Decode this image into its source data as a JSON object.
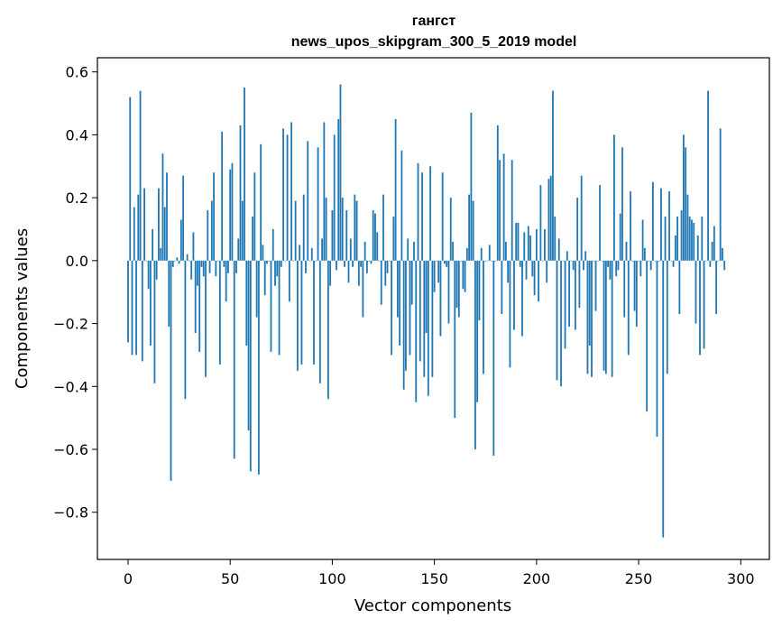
{
  "chart_data": {
    "type": "bar",
    "title": "гангст",
    "subtitle": "news_upos_skipgram_300_5_2019 model",
    "xlabel": "Vector components",
    "ylabel": "Components values",
    "xlim": [
      -15,
      314
    ],
    "ylim": [
      -0.95,
      0.645
    ],
    "xticks": [
      0,
      50,
      100,
      150,
      200,
      250,
      300
    ],
    "yticks": [
      -0.8,
      -0.6,
      -0.4,
      -0.2,
      0.0,
      0.2,
      0.4,
      0.6
    ],
    "ytick_labels": [
      "−0.8",
      "−0.6",
      "−0.4",
      "−0.2",
      "0.0",
      "0.2",
      "0.4",
      "0.6"
    ],
    "bar_color": "#1f77b4",
    "values": [
      -0.26,
      0.52,
      -0.3,
      0.17,
      -0.3,
      0.21,
      0.54,
      -0.32,
      0.23,
      0.0,
      -0.09,
      -0.27,
      0.1,
      -0.39,
      -0.06,
      0.23,
      0.04,
      0.34,
      0.17,
      0.28,
      -0.21,
      -0.7,
      -0.02,
      0.0,
      0.01,
      -0.01,
      0.13,
      0.27,
      -0.44,
      0.02,
      0.0,
      -0.06,
      0.09,
      -0.23,
      -0.08,
      -0.29,
      -0.02,
      -0.05,
      -0.37,
      0.16,
      -0.04,
      0.19,
      0.28,
      -0.05,
      0.0,
      -0.33,
      0.41,
      -0.02,
      -0.13,
      -0.04,
      0.29,
      0.31,
      -0.63,
      -0.04,
      0.07,
      0.43,
      0.19,
      0.55,
      -0.27,
      -0.54,
      -0.67,
      0.14,
      0.28,
      -0.18,
      -0.68,
      0.37,
      0.05,
      -0.11,
      -0.01,
      0.0,
      -0.29,
      0.1,
      -0.08,
      -0.05,
      -0.3,
      -0.02,
      0.42,
      0.0,
      0.4,
      -0.13,
      0.44,
      0.0,
      0.19,
      -0.35,
      0.05,
      -0.33,
      0.21,
      -0.04,
      0.38,
      0.0,
      0.04,
      -0.33,
      0.0,
      0.36,
      -0.39,
      0.07,
      0.44,
      0.2,
      -0.44,
      -0.08,
      0.16,
      0.4,
      -0.03,
      0.45,
      0.56,
      0.2,
      -0.02,
      0.16,
      -0.07,
      0.07,
      -0.02,
      0.21,
      0.19,
      -0.08,
      -0.02,
      -0.18,
      0.06,
      -0.04,
      0.0,
      -0.01,
      0.16,
      0.15,
      0.09,
      0.0,
      -0.14,
      0.21,
      -0.08,
      -0.04,
      0.0,
      -0.3,
      0.14,
      0.45,
      -0.18,
      -0.27,
      0.35,
      -0.41,
      -0.35,
      0.07,
      -0.3,
      -0.14,
      0.06,
      -0.45,
      0.31,
      -0.32,
      0.28,
      -0.37,
      -0.23,
      -0.43,
      0.3,
      -0.37,
      -0.1,
      0.0,
      -0.07,
      -0.24,
      0.28,
      -0.01,
      -0.02,
      -0.2,
      0.2,
      0.06,
      -0.5,
      -0.15,
      -0.18,
      0.0,
      -0.09,
      -0.1,
      0.04,
      0.21,
      0.47,
      0.19,
      -0.6,
      -0.45,
      -0.19,
      0.04,
      -0.36,
      0.0,
      0.0,
      0.05,
      0.0,
      -0.62,
      0.0,
      0.43,
      0.32,
      -0.17,
      0.34,
      0.06,
      -0.07,
      -0.34,
      0.32,
      -0.22,
      0.12,
      0.12,
      -0.02,
      -0.24,
      0.09,
      -0.06,
      0.11,
      0.08,
      -0.05,
      -0.11,
      0.1,
      -0.13,
      0.24,
      0.0,
      0.1,
      -0.07,
      0.26,
      0.27,
      0.54,
      0.14,
      -0.38,
      0.07,
      -0.4,
      0.0,
      -0.28,
      0.03,
      -0.21,
      0.0,
      -0.03,
      -0.22,
      0.2,
      -0.15,
      0.27,
      -0.03,
      0.03,
      -0.36,
      -0.27,
      -0.37,
      0.0,
      -0.16,
      0.0,
      0.24,
      0.0,
      -0.35,
      -0.36,
      -0.02,
      -0.06,
      -0.37,
      0.4,
      -0.05,
      -0.03,
      0.15,
      0.36,
      -0.18,
      0.06,
      -0.3,
      0.22,
      0.0,
      -0.16,
      -0.21,
      0.0,
      -0.05,
      0.13,
      0.04,
      -0.48,
      0.0,
      -0.03,
      0.25,
      0.0,
      -0.56,
      0.0,
      0.23,
      -0.88,
      0.14,
      -0.36,
      0.22,
      0.0,
      -0.02,
      0.08,
      0.14,
      -0.17,
      0.16,
      0.4,
      0.36,
      0.21,
      0.14,
      0.13,
      0.12,
      -0.2,
      0.08,
      -0.3,
      0.14,
      -0.28,
      0.0,
      0.54,
      -0.02,
      0.06,
      0.11,
      -0.17,
      0.0,
      0.42,
      0.04,
      -0.03
    ]
  }
}
